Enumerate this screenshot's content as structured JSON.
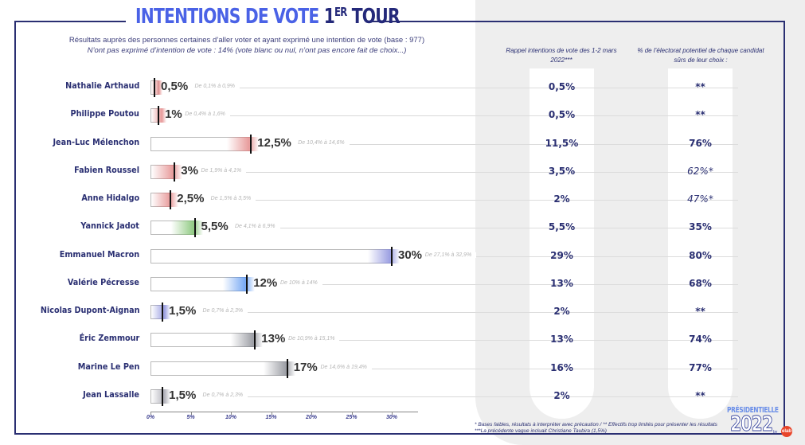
{
  "header": {
    "title_part1": "INTENTIONS DE VOTE ",
    "title_part2": "1",
    "title_sup": "ER",
    "title_part3": " TOUR",
    "subtitle": "Résultats auprès des personnes certaines d’aller voter et ayant exprimé une intention de vote (base : 977)",
    "subtitle2": "N’ont pas exprimé d’intention de vote : 14% (vote blanc ou nul, n’ont pas encore fait de choix...)"
  },
  "columns": {
    "rappel_header": "Rappel intentions de vote des 1-2 mars 2022***",
    "surs_header": "% de l’électorat potentiel de chaque candidat sûrs de leur choix :"
  },
  "colors": {
    "frame": "#2a2f72",
    "text_blue": "#2a2f72",
    "left": "#e06a6a",
    "green": "#6cb85a",
    "center": "#7a7fd8",
    "right_blue": "#4a8cf0",
    "far_right": "#7c7f88"
  },
  "chart_data": {
    "type": "bar",
    "orientation": "horizontal",
    "title": "INTENTIONS DE VOTE 1ER TOUR",
    "xlabel": "",
    "ylabel": "",
    "xlim": [
      0,
      33
    ],
    "x_ticks": [
      "0%",
      "5%",
      "10%",
      "15%",
      "20%",
      "25%",
      "30%"
    ],
    "x_tick_values": [
      0,
      5,
      10,
      15,
      20,
      25,
      30
    ],
    "grid": false,
    "categories": [
      "Nathalie Arthaud",
      "Philippe Poutou",
      "Jean-Luc Mélenchon",
      "Fabien Roussel",
      "Anne Hidalgo",
      "Yannick Jadot",
      "Emmanuel Macron",
      "Valérie Pécresse",
      "Nicolas Dupont-Aignan",
      "Éric Zemmour",
      "Marine Le Pen",
      "Jean Lassalle"
    ],
    "values": [
      0.5,
      1,
      12.5,
      3,
      2.5,
      5.5,
      30,
      12,
      1.5,
      13,
      17,
      1.5
    ],
    "value_labels": [
      "0,5%",
      "1%",
      "12,5%",
      "3%",
      "2,5%",
      "5,5%",
      "30%",
      "12%",
      "1,5%",
      "13%",
      "17%",
      "1,5%"
    ],
    "ranges": [
      "De 0,1% à 0,9%",
      "De 0,4% à 1,6%",
      "De 10,4% à 14,6%",
      "De 1,9% à 4,1%",
      "De 1,5% à 3,5%",
      "De 4,1% à 6,9%",
      "De 27,1% à 32,9%",
      "De 10% à 14%",
      "De 0,7% à 2,3%",
      "De 10,9% à 15,1%",
      "De 14,6% à 19,4%",
      "De 0,7% à 2,3%"
    ],
    "bar_colors": [
      "#e07a7a",
      "#e07a7a",
      "#e07a7a",
      "#e07a7a",
      "#e07a7a",
      "#6cb85a",
      "#7a7fd8",
      "#4a8cf0",
      "#7a7fd8",
      "#7c7f88",
      "#7c7f88",
      "#9a9aa6"
    ],
    "series": [
      {
        "name": "Rappel intentions de vote des 1-2 mars 2022***",
        "values": [
          "0,5%",
          "0,5%",
          "11,5%",
          "3,5%",
          "2%",
          "5,5%",
          "29%",
          "13%",
          "2%",
          "13%",
          "16%",
          "2%"
        ]
      },
      {
        "name": "% de l’électorat potentiel de chaque candidat sûrs de leur choix",
        "values": [
          "**",
          "**",
          "76%",
          "62%*",
          "47%*",
          "35%",
          "80%",
          "68%",
          "**",
          "74%",
          "77%",
          "**"
        ]
      }
    ]
  },
  "footer": {
    "note1": "* Bases faibles, résultats à interpréter avec précaution / ** Effectifs trop limités pour présenter les résultats",
    "note2": "***La précédente vague incluait Christiane Taubira (1,5%)"
  },
  "logo": {
    "top": "PRÉSIDENTIELLE",
    "year": "2022",
    "by": "by",
    "badge": "elab"
  }
}
